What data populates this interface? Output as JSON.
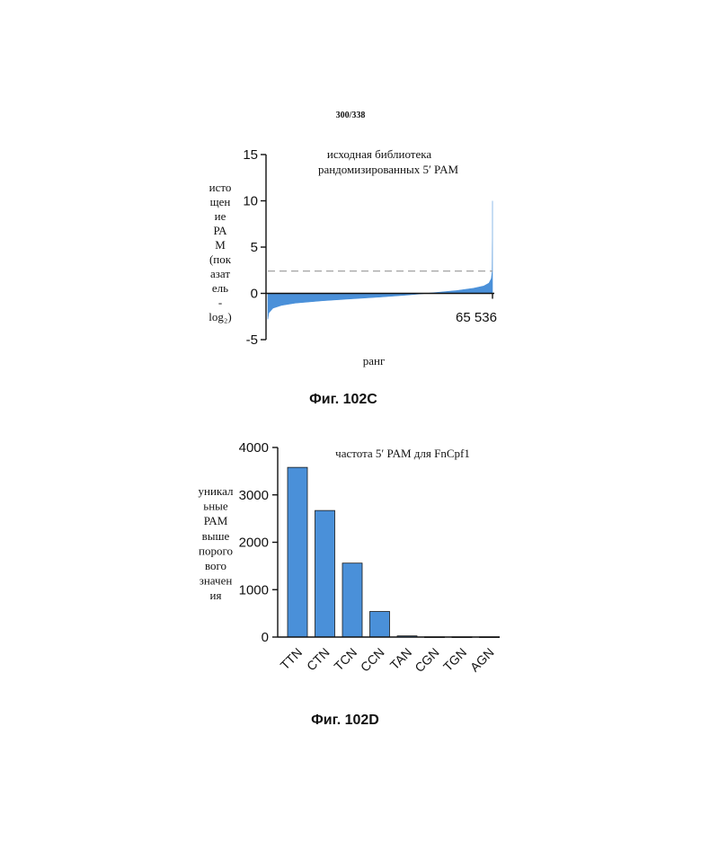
{
  "page_number": "300/338",
  "figures": {
    "c": {
      "caption": "Фиг. 102C",
      "ylabel_lines": [
        "исто",
        "щен",
        "ие",
        "РА",
        "М",
        "(пок",
        "азат",
        "ель",
        "-",
        "log₂)"
      ],
      "ylabel": "истощение РАМ (показатель -log₂)",
      "xlabel": "ранг",
      "annotation_line1": "исходная библиотека",
      "annotation_line2": "рандомизированных 5′ PAM",
      "x_end_label": "65 536"
    },
    "d": {
      "caption": "Фиг. 102D",
      "ylabel_lines": [
        "уникал",
        "ьные",
        "РАМ",
        "выше",
        "порого",
        "вого",
        "значен",
        "ия"
      ],
      "ylabel": "уникальные РАМ выше порогового значения",
      "title": "частота 5′ PAM для FnCpf1"
    }
  },
  "chart_data": [
    {
      "type": "area",
      "title": "исходная библиотека рандомизированных 5′ PAM",
      "xlabel": "ранг",
      "ylabel": "истощение РАМ (показатель -log₂)",
      "ylim": [
        -5,
        15
      ],
      "yticks": [
        -5,
        0,
        5,
        10,
        15
      ],
      "xlim": [
        1,
        65536
      ],
      "x_tick_labels": [
        "65 536"
      ],
      "threshold": 2.4,
      "threshold_style": "dashed",
      "series": [
        {
          "color": "#4a90d9",
          "x": [
            1,
            300,
            1500,
            4000,
            8000,
            16000,
            24000,
            32768,
            40000,
            48000,
            55000,
            60000,
            63000,
            64500,
            65200,
            65450,
            65530,
            65536
          ],
          "y": [
            -2.8,
            -2.1,
            -1.6,
            -1.3,
            -1.05,
            -0.8,
            -0.6,
            -0.4,
            -0.2,
            0.05,
            0.3,
            0.55,
            0.8,
            1.1,
            1.6,
            2.4,
            6.0,
            10.0
          ]
        }
      ]
    },
    {
      "type": "bar",
      "title": "частота 5′ PAM для FnCpf1",
      "ylabel": "уникальные РАМ выше порогового значения",
      "categories": [
        "TTN",
        "CTN",
        "TCN",
        "CCN",
        "TAN",
        "CGN",
        "TGN",
        "AGN"
      ],
      "values": [
        3580,
        2670,
        1560,
        540,
        25,
        5,
        5,
        5
      ],
      "ylim": [
        0,
        4000
      ],
      "yticks": [
        0,
        1000,
        2000,
        3000,
        4000
      ],
      "bar_color": "#4a90d9"
    }
  ]
}
